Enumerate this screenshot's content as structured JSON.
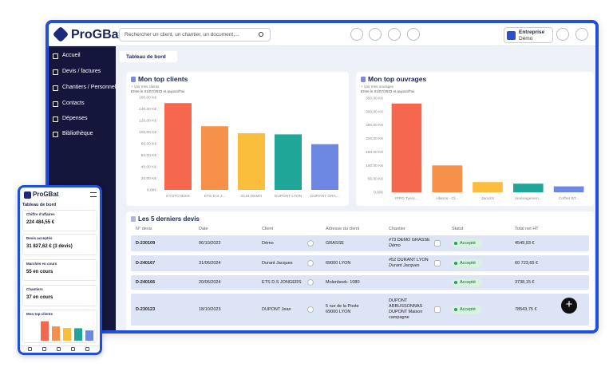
{
  "header": {
    "logo": "ProGBat",
    "search_placeholder": "Rechercher un client, un chantier, un document,...",
    "company_label": "Entreprise",
    "company_name": "Démo"
  },
  "sidebar": {
    "items": [
      "Accueil",
      "Devis / factures",
      "Chantiers / Personnel",
      "Contacts",
      "Dépenses",
      "Bibliothèque"
    ]
  },
  "tab": "Tableau de bord",
  "chart_data": [
    {
      "type": "bar",
      "title": "Mon top clients",
      "link": "+ Voir mes clients",
      "subtitle": "Entre le 01/07/2023 et aujourd'hui",
      "categories": [
        "KYOTO BOIS",
        "ETS D.S J...",
        "3134 DEMO",
        "DUPONT LYON",
        "DURANT GRA..."
      ],
      "values": [
        150000,
        110000,
        98000,
        96000,
        79000
      ],
      "colors": [
        "#f5674f",
        "#f7914a",
        "#fbbd3c",
        "#1fa698",
        "#6c88e3"
      ],
      "ylim": [
        0,
        160000
      ],
      "yticks": [
        {
          "value": 0,
          "label": "0,00€"
        },
        {
          "value": 20000,
          "label": "20,00 K€"
        },
        {
          "value": 40000,
          "label": "40,00 K€"
        },
        {
          "value": 60000,
          "label": "60,00 K€"
        },
        {
          "value": 80000,
          "label": "80,00 K€"
        },
        {
          "value": 100000,
          "label": "100,00 K€"
        },
        {
          "value": 120000,
          "label": "120,00 K€"
        },
        {
          "value": 140000,
          "label": "140,00 K€"
        },
        {
          "value": 160000,
          "label": "160,00 K€"
        }
      ]
    },
    {
      "type": "bar",
      "title": "Mon top ouvrages",
      "link": "+ Voir mes ouvrages",
      "subtitle": "Entre le 01/07/2023 et aujourd'hui",
      "categories": [
        "IPPO Tyers...",
        "Hlanns - Cl...",
        "Jacuzzi",
        "Aménagemen...",
        "Coffret BT..."
      ],
      "values": [
        330000,
        100000,
        38000,
        32000,
        22000
      ],
      "colors": [
        "#f5674f",
        "#f7914a",
        "#fbbd3c",
        "#1fa698",
        "#6c88e3"
      ],
      "ylim": [
        0,
        350000
      ],
      "yticks": [
        {
          "value": 0,
          "label": "0,00€"
        },
        {
          "value": 50000,
          "label": "50,00 K€"
        },
        {
          "value": 100000,
          "label": "100,00 K€"
        },
        {
          "value": 150000,
          "label": "150,00 K€"
        },
        {
          "value": 200000,
          "label": "200,00 K€"
        },
        {
          "value": 250000,
          "label": "250,00 K€"
        },
        {
          "value": 300000,
          "label": "300,00 K€"
        },
        {
          "value": 350000,
          "label": "350,00 K€"
        }
      ]
    }
  ],
  "table": {
    "title": "Les 5 derniers devis",
    "columns": [
      "N° devis",
      "Date",
      "Client",
      "Adresse du client",
      "Chantier",
      "Statut",
      "Total net HT"
    ],
    "rows": [
      [
        "D-230109",
        "06/10/2022",
        "Démo",
        "GRASSE",
        [
          "#73 DEMO GRASSE",
          "Démo"
        ],
        "Accepté",
        "4549,93 €"
      ],
      [
        "D-240167",
        "31/06/2024",
        "Durant Jacques",
        "69000 LYON",
        [
          "#52 DURANT LYON",
          "Durant Jacques"
        ],
        "Accepté",
        "60 723,65 €"
      ],
      [
        "D-240166",
        "20/06/2024",
        "ETS D.S JONGERS",
        "Molenbeek- 1080",
        null,
        "Accepté",
        "3738,15 €"
      ],
      [
        "D-230123",
        "18/10/2023",
        "DUPONT Jean",
        [
          "5 rue de la Poste",
          "69000 LYON"
        ],
        [
          "DUPONT",
          "ARBUSSONNAS",
          "DUPONT Maison",
          "campagne"
        ],
        "Accepté",
        "78543,75 €"
      ]
    ]
  },
  "mobile": {
    "logo": "ProGBat",
    "page_title": "Tableau de bord",
    "cards": [
      {
        "title": "Chiffre d'affaires",
        "value": "224 484,55 €"
      },
      {
        "title": "Devis acceptés",
        "value": "31 827,62 € (3 devis)"
      },
      {
        "title": "Marchés en cours",
        "value": "55 en cours"
      },
      {
        "title": "Chantiers",
        "value": "37 en cours"
      }
    ],
    "chart_title": "Mon top clients"
  }
}
